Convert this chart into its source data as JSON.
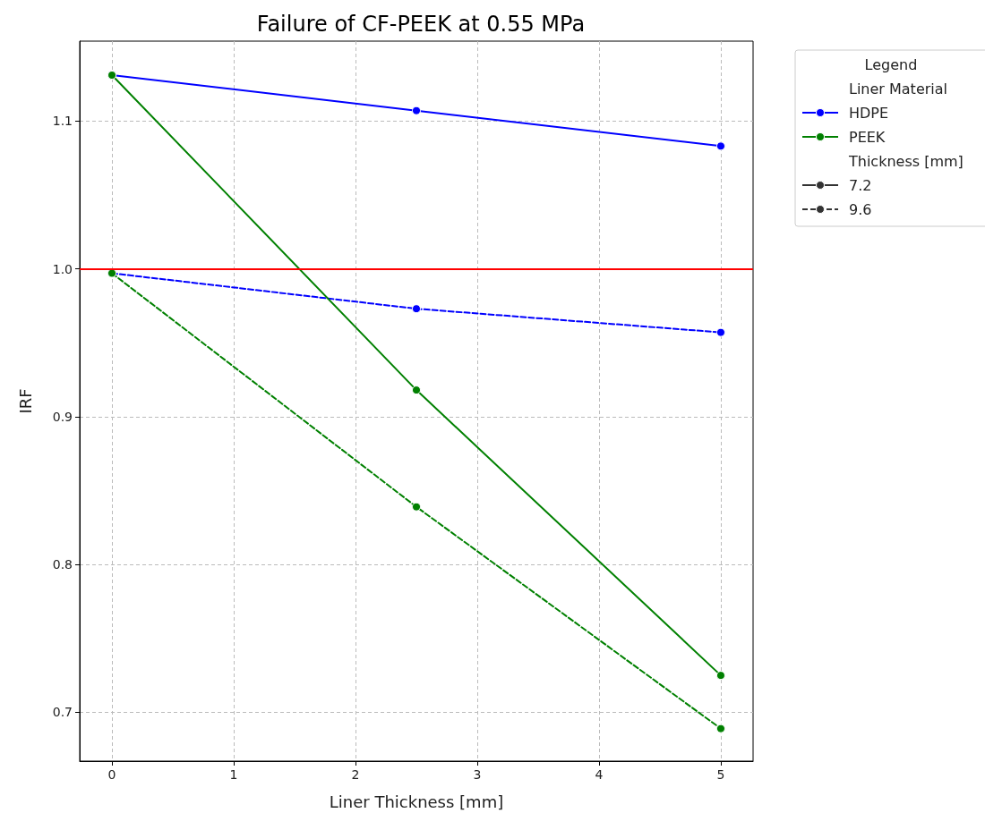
{
  "chart_data": {
    "type": "line",
    "title": "Failure of CF-PEEK at 0.55 MPa",
    "xlabel": "Liner Thickness [mm]",
    "ylabel": "IRF",
    "legend_title": "Legend",
    "annotations": [
      "Liner Material",
      "Thickness [mm]",
      "7.2",
      "9.6"
    ],
    "x": [
      0,
      2.5,
      5
    ],
    "series": [
      {
        "name": "HDPE",
        "color": "#0000ff",
        "line_style": "solid",
        "values": [
          1.131,
          1.107,
          1.083
        ]
      },
      {
        "color": "#0000ff",
        "line_style": "dashed",
        "values": [
          0.997,
          0.973,
          0.957
        ]
      },
      {
        "name": "PEEK",
        "color": "#008000",
        "line_style": "solid",
        "values": [
          1.131,
          0.918,
          0.725
        ]
      },
      {
        "color": "#008000",
        "line_style": "dashed",
        "values": [
          0.997,
          0.839,
          0.689
        ]
      }
    ],
    "xlim": [
      -0.265,
      5.265
    ],
    "xticks": [
      0,
      1,
      2,
      3,
      4,
      5
    ],
    "ylim": [
      0.667,
      1.154
    ],
    "yticks": [
      0.7,
      0.8,
      0.9,
      {
        "value": 1,
        "label": "1.0"
      },
      1.1
    ],
    "ref_lines": [
      {
        "axis": "y",
        "value": 1,
        "color": "#ff0000"
      }
    ],
    "grid": true,
    "legend": "top right",
    "marker": "circle"
  }
}
